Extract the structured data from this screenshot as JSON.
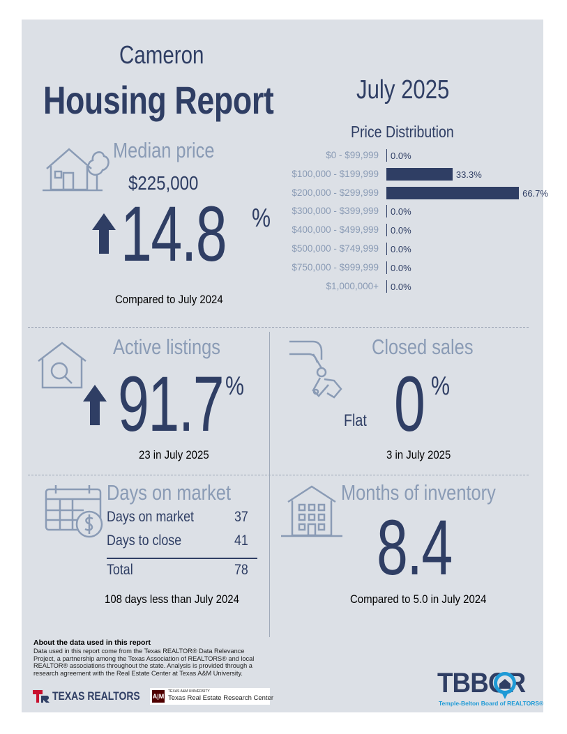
{
  "header": {
    "city": "Cameron",
    "title": "Housing Report",
    "month": "July 2025"
  },
  "price_distribution": {
    "title": "Price Distribution",
    "rows": [
      {
        "label": "$0 - $99,999",
        "value": "0.0%",
        "share": 0.0
      },
      {
        "label": "$100,000 - $199,999",
        "value": "33.3%",
        "share": 33.3
      },
      {
        "label": "$200,000 - $299,999",
        "value": "66.7%",
        "share": 66.7
      },
      {
        "label": "$300,000 - $399,999",
        "value": "0.0%",
        "share": 0.0
      },
      {
        "label": "$400,000 - $499,999",
        "value": "0.0%",
        "share": 0.0
      },
      {
        "label": "$500,000 - $749,999",
        "value": "0.0%",
        "share": 0.0
      },
      {
        "label": "$750,000 - $999,999",
        "value": "0.0%",
        "share": 0.0
      },
      {
        "label": "$1,000,000+",
        "value": "0.0%",
        "share": 0.0
      }
    ]
  },
  "median_price": {
    "title": "Median price",
    "price": "$225,000",
    "change": "14.8",
    "unit": "%",
    "caption": "Compared to July 2024",
    "icon": "house-with-tree-icon",
    "trend_icon": "arrow-up-icon"
  },
  "active_listings": {
    "title": "Active listings",
    "change": "91.7",
    "unit": "%",
    "caption": "23 in July 2025",
    "icon": "house-magnifier-icon",
    "trend_icon": "arrow-up-icon"
  },
  "closed_sales": {
    "title": "Closed sales",
    "trend_word": "Flat",
    "change": "0",
    "unit": "%",
    "caption": "3 in July 2025",
    "icon": "hand-with-keys-icon"
  },
  "days_on_market": {
    "title": "Days on market",
    "rows": [
      {
        "label": "Days on market",
        "value": "37"
      },
      {
        "label": "Days to close",
        "value": "41"
      }
    ],
    "total_label": "Total",
    "total_value": "78",
    "caption": "108 days less than July 2024",
    "icon": "calendar-dollar-icon"
  },
  "months_inventory": {
    "title": "Months of inventory",
    "value": "8.4",
    "caption": "Compared to 5.0 in July 2024",
    "icon": "apartment-building-icon"
  },
  "footer": {
    "heading": "About the data used in this report",
    "text": "Data used in this report come from the Texas REALTOR® Data Relevance Project, a partnership among the Texas Association of REALTORS® and local REALTOR® associations throughout the state. Analysis is provided through a research agreement with the Real Estate Center at Texas A&M University.",
    "logo_texas_realtors": "TEXAS REALTORS",
    "logo_tamu_small": "TEXAS A&M UNIVERSITY",
    "logo_tamu_name": "Texas Real Estate Research Center",
    "logo_tbbor": "TBBOR",
    "logo_tbbor_sub": "Temple-Belton Board of REALTORS®"
  },
  "colors": {
    "navy": "#2f3e64",
    "muted": "#8a9bb5",
    "panel": "#dce0e6",
    "brand_red": "#c8102e",
    "tbbor_blue": "#1e9ad6"
  }
}
